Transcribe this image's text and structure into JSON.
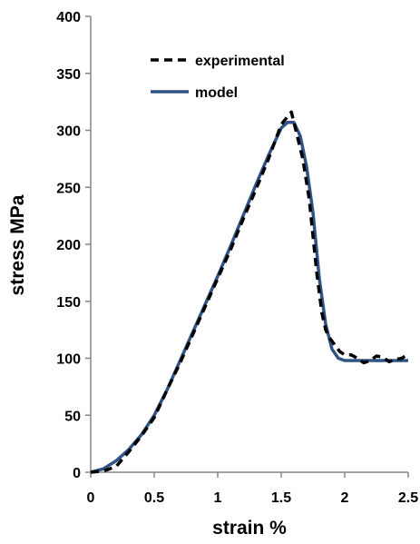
{
  "chart_data": {
    "type": "line",
    "title": "",
    "xlabel": "strain %",
    "ylabel": "stress MPa",
    "xlim": [
      0,
      2.5
    ],
    "ylim": [
      0,
      400
    ],
    "x_ticks": [
      0,
      0.5,
      1,
      1.5,
      2,
      2.5
    ],
    "x_tick_labels": [
      "0",
      "0.5",
      "1",
      "1.5",
      "2",
      "2.5"
    ],
    "y_ticks": [
      0,
      50,
      100,
      150,
      200,
      250,
      300,
      350,
      400
    ],
    "y_tick_labels": [
      "0",
      "50",
      "100",
      "150",
      "200",
      "250",
      "300",
      "350",
      "400"
    ],
    "grid": false,
    "legend_position": "top-left",
    "series": [
      {
        "name": "experimental",
        "style": "dashed",
        "color": "#000000",
        "x": [
          0,
          0.1,
          0.2,
          0.3,
          0.4,
          0.5,
          0.6,
          0.7,
          0.8,
          0.9,
          1.0,
          1.1,
          1.2,
          1.3,
          1.4,
          1.45,
          1.5,
          1.55,
          1.58,
          1.62,
          1.67,
          1.72,
          1.78,
          1.82,
          1.85,
          1.88,
          1.92,
          1.96,
          2.0,
          2.05,
          2.1,
          2.15,
          2.2,
          2.25,
          2.3,
          2.35,
          2.4,
          2.45,
          2.5
        ],
        "y": [
          0,
          1,
          5,
          18,
          32,
          48,
          72,
          95,
          120,
          145,
          170,
          195,
          222,
          248,
          275,
          290,
          305,
          312,
          316,
          298,
          275,
          240,
          175,
          140,
          125,
          118,
          112,
          106,
          103,
          103,
          100,
          96,
          98,
          102,
          101,
          97,
          99,
          100,
          104
        ]
      },
      {
        "name": "model",
        "style": "solid",
        "color": "#2e5384",
        "x": [
          0,
          0.1,
          0.2,
          0.3,
          0.4,
          0.5,
          0.6,
          0.7,
          0.8,
          0.9,
          1.0,
          1.1,
          1.2,
          1.3,
          1.4,
          1.5,
          1.55,
          1.6,
          1.65,
          1.7,
          1.75,
          1.8,
          1.85,
          1.9,
          1.95,
          2.0,
          2.1,
          2.2,
          2.3,
          2.4,
          2.5
        ],
        "y": [
          0,
          3,
          10,
          20,
          33,
          50,
          72,
          97,
          122,
          147,
          172,
          198,
          225,
          252,
          278,
          302,
          307,
          307,
          295,
          268,
          228,
          170,
          130,
          108,
          100,
          98,
          98,
          98,
          98,
          98,
          98
        ]
      }
    ]
  }
}
